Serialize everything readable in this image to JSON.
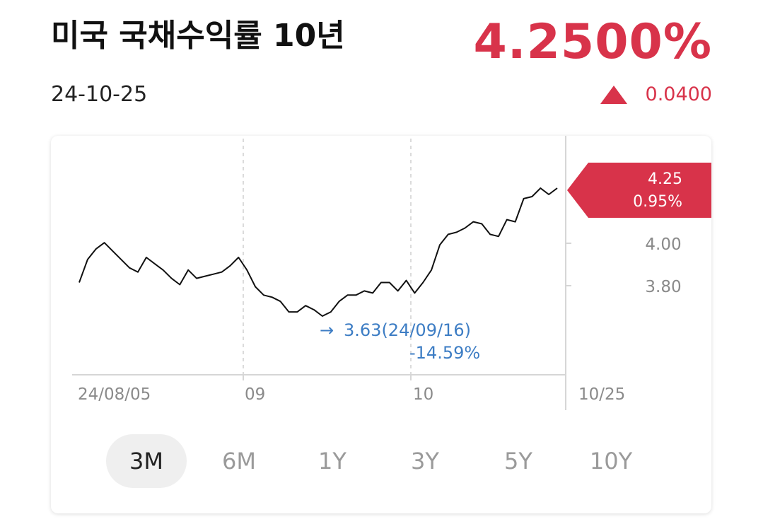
{
  "header": {
    "title": "미국 국채수익률 10년",
    "price": "4.2500%",
    "date": "24-10-25",
    "change": "0.0400",
    "change_icon": "triangle-up-icon",
    "up_color": "#d8334a"
  },
  "chart_data": {
    "type": "line",
    "title": "",
    "x_start": "24/08/05",
    "x_end": "10/25",
    "xtick_labels": [
      "24/08/05",
      "09",
      "10",
      "10/25"
    ],
    "ytick_labels": [
      "4.00",
      "3.80"
    ],
    "ylim": [
      3.36,
      4.5
    ],
    "series": [
      {
        "values": [
          3.8,
          3.91,
          3.96,
          3.99,
          3.95,
          3.91,
          3.87,
          3.85,
          3.92,
          3.89,
          3.86,
          3.82,
          3.79,
          3.86,
          3.82,
          3.83,
          3.84,
          3.85,
          3.88,
          3.92,
          3.86,
          3.78,
          3.74,
          3.73,
          3.71,
          3.66,
          3.66,
          3.69,
          3.67,
          3.64,
          3.66,
          3.71,
          3.74,
          3.74,
          3.76,
          3.75,
          3.8,
          3.8,
          3.76,
          3.81,
          3.75,
          3.8,
          3.86,
          3.98,
          4.03,
          4.04,
          4.06,
          4.09,
          4.08,
          4.03,
          4.02,
          4.1,
          4.09,
          4.2,
          4.21,
          4.25,
          4.22,
          4.25
        ]
      }
    ],
    "current": {
      "value": "4.25",
      "percent": "0.95%"
    },
    "low_annotation": {
      "text": "3.63(24/09/16)",
      "percent": "-14.59%",
      "value": 3.63,
      "index": 29
    },
    "line_color": "#111111",
    "grid": true
  },
  "periods": {
    "selected": "3M",
    "items": [
      "3M",
      "6M",
      "1Y",
      "3Y",
      "5Y",
      "10Y"
    ]
  }
}
